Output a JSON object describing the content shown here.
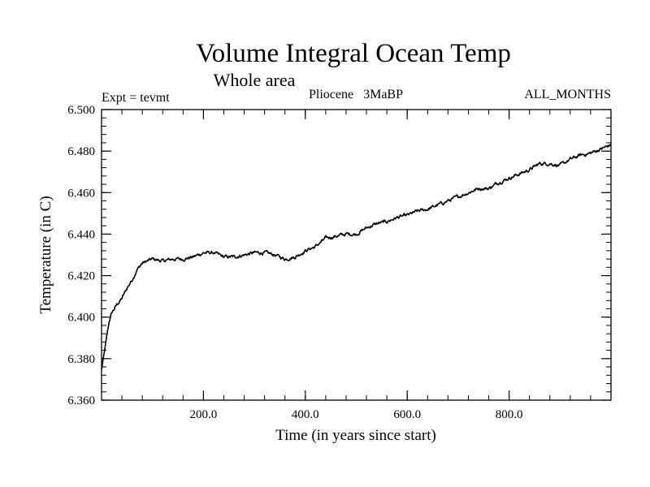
{
  "chart_data": {
    "type": "line",
    "title": "Volume Integral Ocean Temp",
    "subtitle": "Whole area",
    "header_left": "Expt = tevmt",
    "header_center": "Pliocene   3MaBP",
    "header_right": "ALL_MONTHS",
    "xlabel": "Time (in years since start)",
    "ylabel": "Temperature (in C)",
    "xlim": [
      0,
      1000
    ],
    "ylim": [
      6.36,
      6.5
    ],
    "x_ticks": [
      200,
      400,
      600,
      800
    ],
    "x_tick_labels": [
      "200.0",
      "400.0",
      "600.0",
      "800.0"
    ],
    "y_ticks": [
      6.36,
      6.38,
      6.4,
      6.42,
      6.44,
      6.46,
      6.48,
      6.5
    ],
    "y_tick_labels": [
      "6.360",
      "6.380",
      "6.400",
      "6.420",
      "6.440",
      "6.460",
      "6.480",
      "6.500"
    ],
    "x_minor_step": 40,
    "y_minor_step": 0.004,
    "grid": false,
    "series": [
      {
        "name": "Volume Integral Ocean Temp",
        "color": "#000000",
        "x": [
          0,
          5,
          10,
          15,
          20,
          25,
          30,
          40,
          50,
          60,
          70,
          80,
          90,
          100,
          120,
          140,
          160,
          180,
          200,
          220,
          240,
          260,
          280,
          300,
          320,
          340,
          360,
          380,
          400,
          420,
          440,
          460,
          480,
          500,
          520,
          540,
          560,
          580,
          600,
          620,
          640,
          660,
          680,
          700,
          720,
          740,
          760,
          780,
          800,
          820,
          840,
          860,
          880,
          900,
          920,
          940,
          960,
          980,
          1000
        ],
        "values": [
          6.375,
          6.382,
          6.39,
          6.398,
          6.402,
          6.404,
          6.406,
          6.409,
          6.414,
          6.418,
          6.423,
          6.426,
          6.427,
          6.428,
          6.427,
          6.428,
          6.428,
          6.429,
          6.431,
          6.431,
          6.429,
          6.429,
          6.43,
          6.431,
          6.431,
          6.43,
          6.428,
          6.429,
          6.432,
          6.434,
          6.438,
          6.439,
          6.44,
          6.44,
          6.443,
          6.445,
          6.446,
          6.448,
          6.449,
          6.451,
          6.452,
          6.454,
          6.456,
          6.458,
          6.46,
          6.462,
          6.462,
          6.465,
          6.467,
          6.469,
          6.471,
          6.474,
          6.474,
          6.473,
          6.476,
          6.478,
          6.479,
          6.481,
          6.483
        ]
      }
    ]
  }
}
